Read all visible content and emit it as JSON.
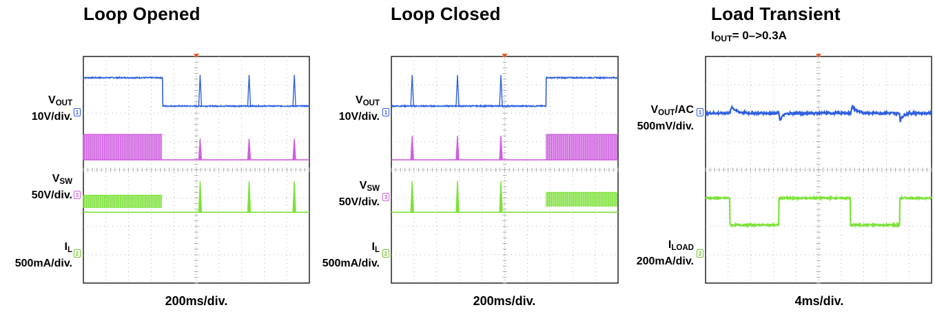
{
  "colors": {
    "vout": "#2e5fe0",
    "vsw": "#cf5fe0",
    "il": "#7ee23a",
    "grid": "#9a9a9a",
    "trigger": "#e8551e"
  },
  "chart_data": [
    {
      "type": "line",
      "title": "Loop Opened",
      "time_div": "200ms/div.",
      "grid": true,
      "series": [
        {
          "name": "VOUT",
          "label_main": "V",
          "label_sub": "OUT",
          "scale": "10V/div.",
          "marker": "1",
          "kind": "step_then_pulses",
          "high": 3.25,
          "low": 2.25,
          "switch_at": 2.1,
          "pulses": [
            3.1,
            4.4,
            5.6
          ],
          "pulse_height": 1.1,
          "noise": 0.02
        },
        {
          "name": "VSW",
          "label_main": "V",
          "label_sub": "SW",
          "scale": "50V/div.",
          "marker": "3",
          "kind": "burst_then_pulses",
          "base": 0.35,
          "top": 1.25,
          "burst_range": [
            0,
            2.1
          ],
          "pulses": [
            3.1,
            4.4,
            5.6
          ],
          "pulse_height": 0.75
        },
        {
          "name": "IL",
          "label_main": "I",
          "label_sub": "L",
          "scale": "500mA/div.",
          "marker": "2",
          "kind": "burst_then_pulses",
          "base": -1.5,
          "top": -0.9,
          "burst_bottom": -1.35,
          "burst_range": [
            0,
            2.1
          ],
          "pulses": [
            3.1,
            4.4,
            5.6
          ],
          "pulse_height": 1.1
        }
      ]
    },
    {
      "type": "line",
      "title": "Loop Closed",
      "time_div": "200ms/div.",
      "grid": true,
      "series": [
        {
          "name": "VOUT",
          "label_main": "V",
          "label_sub": "OUT",
          "scale": "10V/div.",
          "marker": "1",
          "kind": "pulses_then_step",
          "high": 3.25,
          "low": 2.25,
          "switch_at": 4.1,
          "pulses": [
            0.55,
            1.75,
            2.9
          ],
          "pulse_height": 1.1,
          "noise": 0.02
        },
        {
          "name": "VSW",
          "label_main": "V",
          "label_sub": "SW",
          "scale": "50V/div.",
          "marker": "3",
          "kind": "pulses_then_burst",
          "base": 0.35,
          "top": 1.25,
          "burst_range": [
            4.1,
            6
          ],
          "pulses": [
            0.55,
            1.75,
            2.9
          ],
          "pulse_height": 0.85
        },
        {
          "name": "IL",
          "label_main": "I",
          "label_sub": "L",
          "scale": "500mA/div.",
          "marker": "2",
          "kind": "pulses_then_burst",
          "base": -1.5,
          "top": -0.8,
          "burst_bottom": -1.3,
          "burst_range": [
            4.1,
            6
          ],
          "pulses": [
            0.55,
            1.75,
            2.9
          ],
          "pulse_height": 1.1
        }
      ]
    },
    {
      "type": "line",
      "title": "Load Transient",
      "subtitle_main": "I",
      "subtitle_sub": "OUT",
      "subtitle_rest": "= 0–>0.3A",
      "time_div": "4ms/div.",
      "grid": true,
      "series": [
        {
          "name": "VOUT/AC",
          "label_main": "V",
          "label_sub": "OUT",
          "label_rest": "/AC",
          "scale": "500mV/div.",
          "marker": "1",
          "kind": "transient",
          "base": 2.0,
          "overshoot": 0.35,
          "undershoot": -0.35,
          "up_at": [
            0.65,
            3.85
          ],
          "down_at": [
            1.95,
            5.15
          ],
          "noise": 0.04
        },
        {
          "name": "ILOAD",
          "label_main": "I",
          "label_sub": "LOAD",
          "scale": "200mA/div.",
          "marker": "2",
          "kind": "square",
          "high": -1.0,
          "low": -1.95,
          "low_ranges": [
            [
              0.65,
              1.95
            ],
            [
              3.85,
              5.15
            ]
          ],
          "noise": 0.03
        }
      ]
    }
  ]
}
